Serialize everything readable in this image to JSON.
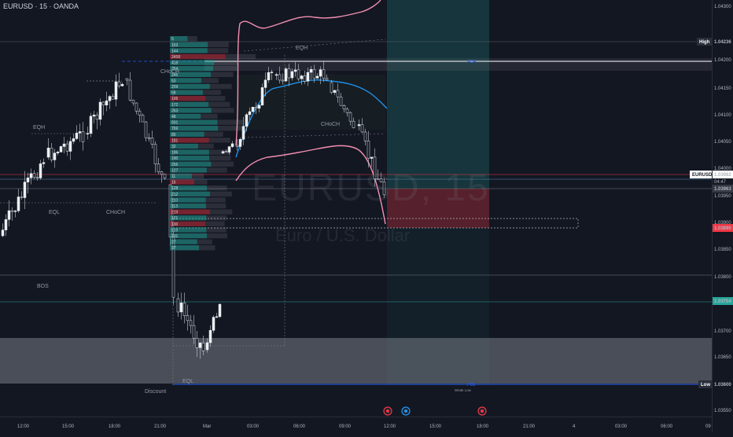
{
  "header": {
    "symbol_line": "EURUSD · 15 · OANDA"
  },
  "watermark": {
    "symbol": "EURUSD, 15",
    "description": "Euro / U.S. Dollar"
  },
  "price_axis": {
    "ticks": [
      "1.04300",
      "1.04200",
      "1.04150",
      "1.04100",
      "1.04050",
      "1.04000",
      "1.03950",
      "1.03900",
      "1.03850",
      "1.03800",
      "1.03700",
      "1.03650",
      "1.03550"
    ],
    "high_label": "High",
    "high_value": "1.04236",
    "low_label": "Low",
    "low_value": "1.03600",
    "symbol_tag": "EURUSD",
    "current_price": "1.03982",
    "countdown": "04:47",
    "grey_tag": "1.03963",
    "red_tag": "1.03890",
    "green_tag": "1.03754"
  },
  "time_axis": {
    "labels": [
      "12:00",
      "15:00",
      "18:00",
      "21:00",
      "Mar",
      "03:00",
      "06:00",
      "09:00",
      "12:00",
      "15:00",
      "18:00",
      "21:00",
      "4",
      "03:00",
      "06:00",
      "09"
    ]
  },
  "annotations": {
    "eqh_left": "EQH",
    "eql_left": "EQL",
    "choch_left": "CHoCH",
    "choch_top": "CHoCH",
    "eqh_top": "EQH",
    "choch_mid": "CHoCH",
    "bos": "BOS",
    "eql_bottom": "EQL",
    "discount": "Discount",
    "pdh": "PDH",
    "pdl": "PDL",
    "weak_low": "Weak Low"
  },
  "volume_profile": {
    "labels": [
      "5",
      "153",
      "144",
      "2458",
      "418",
      "354",
      "245",
      "53",
      "209",
      "68",
      "106",
      "172",
      "263",
      "48",
      "691",
      "769",
      "85",
      "181",
      "32",
      "186",
      "190",
      "256",
      "127",
      "11",
      "16",
      "128",
      "212",
      "110",
      "113",
      "219",
      "121",
      "100",
      "119",
      "131",
      "27",
      "37"
    ]
  },
  "colors": {
    "background": "#131722",
    "bull_candle": "#e6e6e6",
    "bear_candle": "#e6e6e6",
    "teal": "#26a69a",
    "red": "#f23645",
    "blue": "#2962ff",
    "pink": "#f48fb1",
    "ma_blue": "#2196f3"
  },
  "icons": [
    "event-earnings-icon",
    "event-dividend-icon",
    "event-news-icon"
  ]
}
